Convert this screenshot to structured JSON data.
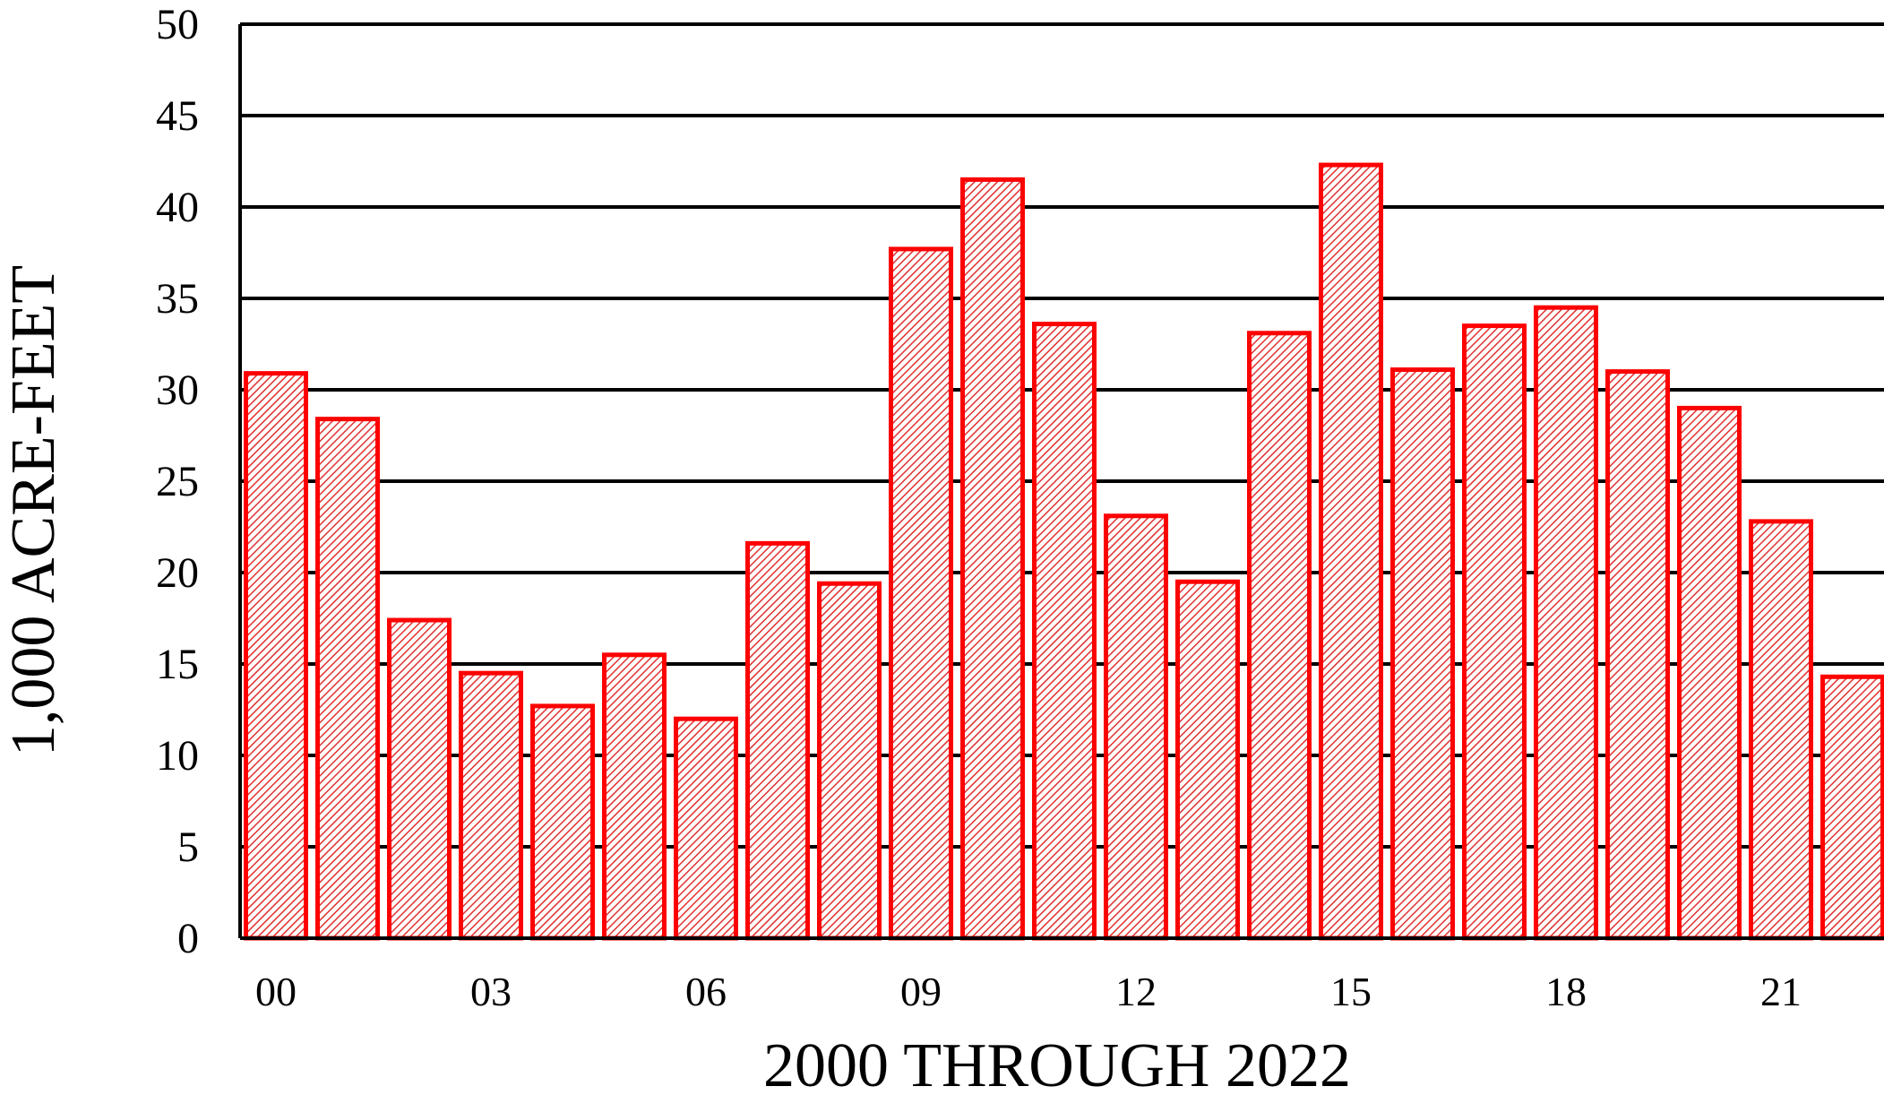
{
  "chart_data": {
    "type": "bar",
    "title": "",
    "xlabel": "2000 THROUGH  2022",
    "ylabel": "1,000  ACRE-FEET",
    "ylim": [
      0,
      50
    ],
    "yticks": [
      "0",
      "5",
      "10",
      "15",
      "20",
      "25",
      "30",
      "35",
      "40",
      "45",
      "50"
    ],
    "grid": true,
    "categories": [
      "00",
      "01",
      "02",
      "03",
      "04",
      "05",
      "06",
      "07",
      "08",
      "09",
      "10",
      "11",
      "12",
      "13",
      "14",
      "15",
      "16",
      "17",
      "18",
      "19",
      "20",
      "21",
      "22"
    ],
    "category_labels_shown": [
      "00",
      "03",
      "06",
      "09",
      "12",
      "15",
      "18",
      "21"
    ],
    "values": [
      30.9,
      28.4,
      17.4,
      14.5,
      12.7,
      15.5,
      12.0,
      21.6,
      19.4,
      37.7,
      41.5,
      33.6,
      23.1,
      19.5,
      33.1,
      42.3,
      31.1,
      33.5,
      34.5,
      31.0,
      29.0,
      22.8,
      14.3
    ],
    "colors": {
      "bar_stroke": "#ff0000",
      "bar_fill_background": "#ffffff",
      "bar_hatch": "#e03030",
      "grid": "#000000",
      "axis": "#000000"
    }
  }
}
